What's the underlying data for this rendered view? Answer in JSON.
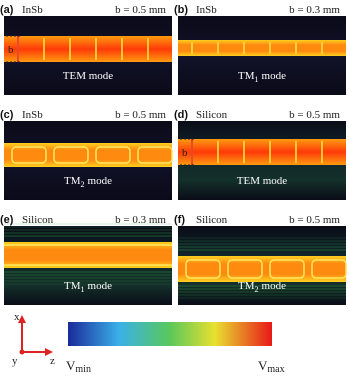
{
  "panels": [
    {
      "label": "(a)",
      "material": "InSb",
      "b": "b = 0.5 mm",
      "mode": "TEM mode",
      "b_marker": "b"
    },
    {
      "label": "(b)",
      "material": "InSb",
      "b": "b = 0.3 mm",
      "mode": "TM",
      "mode_sub": "1",
      "mode_suffix": "mode"
    },
    {
      "label": "(c)",
      "material": "InSb",
      "b": "b = 0.5 mm",
      "mode": "TM",
      "mode_sub": "2",
      "mode_suffix": "mode"
    },
    {
      "label": "(d)",
      "material": "Silicon",
      "b": "b = 0.5 mm",
      "mode": "TEM mode",
      "b_marker": "b"
    },
    {
      "label": "(e)",
      "material": "Silicon",
      "b": "b = 0.3 mm",
      "mode": "TM",
      "mode_sub": "1",
      "mode_suffix": "mode"
    },
    {
      "label": "(f)",
      "material": "Silicon",
      "b": "b = 0.5 mm",
      "mode": "TM",
      "mode_sub": "2",
      "mode_suffix": "mode"
    }
  ],
  "axes": {
    "x": "x",
    "y": "y",
    "z": "z"
  },
  "colorbar": {
    "min": {
      "symbol": "V",
      "sub": "min"
    },
    "max": {
      "symbol": "V",
      "sub": "max"
    }
  }
}
